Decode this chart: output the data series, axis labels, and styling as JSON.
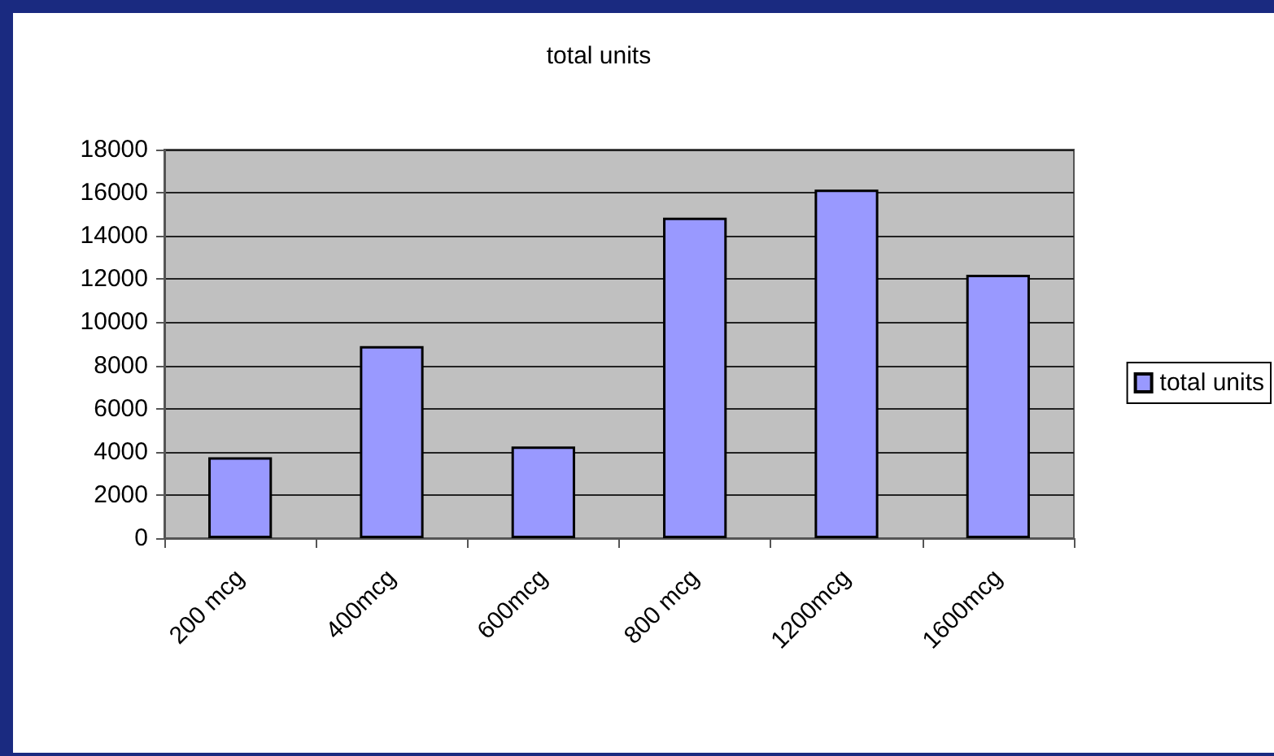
{
  "chart_data": {
    "type": "bar",
    "title": "total units",
    "categories": [
      "200 mcg",
      "400mcg",
      "600mcg",
      "800 mcg",
      "1200mcg",
      "1600mcg"
    ],
    "series": [
      {
        "name": "total units",
        "color": "#9999ff",
        "values": [
          3750,
          8900,
          4250,
          14850,
          16150,
          12200
        ]
      }
    ],
    "ylim": [
      0,
      18000
    ],
    "yticks": [
      0,
      2000,
      4000,
      6000,
      8000,
      10000,
      12000,
      14000,
      16000,
      18000
    ],
    "grid": "y",
    "legend": "right"
  }
}
